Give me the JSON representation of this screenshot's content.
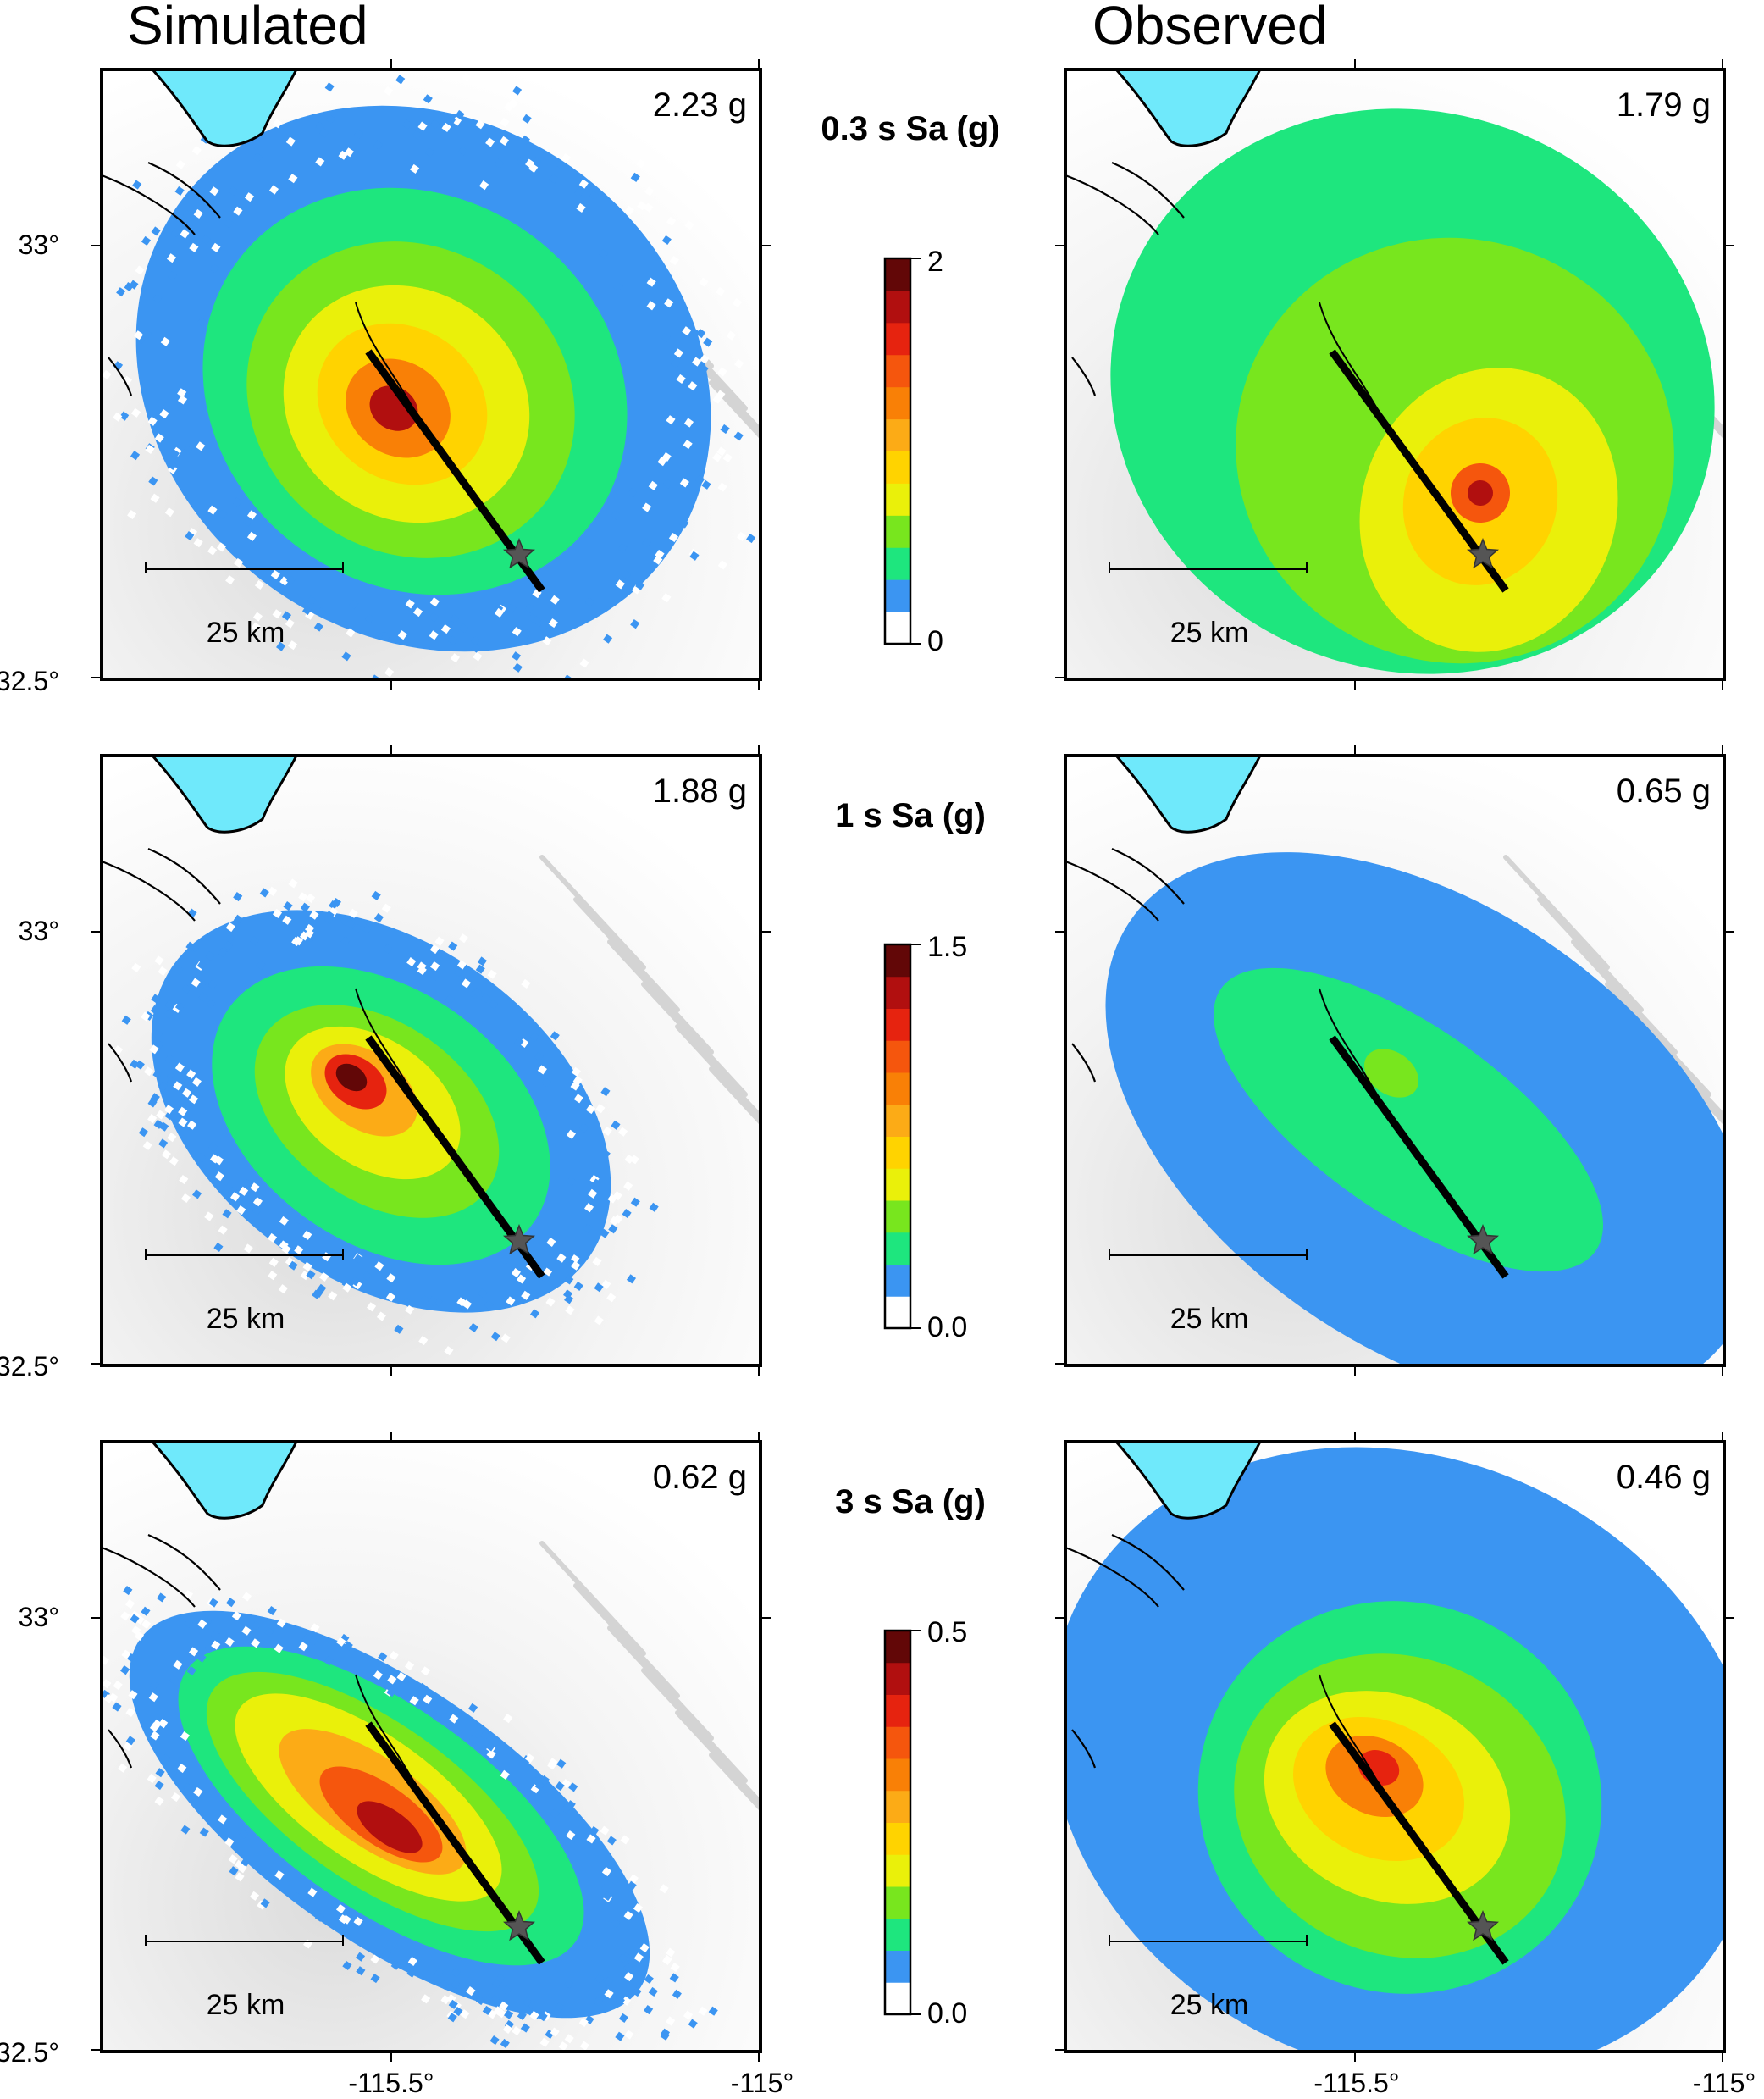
{
  "columns": [
    {
      "title": "Simulated"
    },
    {
      "title": "Observed"
    }
  ],
  "rows": [
    {
      "label": "0.3 s Sa (g)",
      "colorbar": {
        "min_label": "0",
        "max_label": "2",
        "min": 0,
        "max": 2
      },
      "simulated_peak": "2.23 g",
      "observed_peak": "1.79 g",
      "simulated_level": 0.55,
      "observed_level": 0.5
    },
    {
      "label": "1 s Sa (g)",
      "colorbar": {
        "min_label": "0.0",
        "max_label": "1.5",
        "min": 0,
        "max": 1.5
      },
      "simulated_peak": "1.88 g",
      "observed_peak": "0.65 g",
      "simulated_level": 0.42,
      "observed_level": 0.22
    },
    {
      "label": "3 s Sa (g)",
      "colorbar": {
        "min_label": "0.0",
        "max_label": "0.5",
        "min": 0,
        "max": 0.5
      },
      "simulated_peak": "0.62 g",
      "observed_peak": "0.46 g",
      "simulated_level": 0.6,
      "observed_level": 0.5
    }
  ],
  "axes": {
    "lat_labels": [
      "33°",
      "32.5°"
    ],
    "lon_labels": [
      "-115.5°",
      "-115°"
    ]
  },
  "scale_bar": "25 km",
  "colors": {
    "scale": [
      "#ffffff",
      "#3b95f2",
      "#1ee67e",
      "#78e61e",
      "#eaf00a",
      "#ffd300",
      "#fcab16",
      "#f98006",
      "#f5560d",
      "#e6230f",
      "#b10f0f",
      "#620707"
    ],
    "water": "#6fe9fb",
    "terrain": "#e9e9e9",
    "fault": "#000000",
    "epicenter": "#555555"
  }
}
